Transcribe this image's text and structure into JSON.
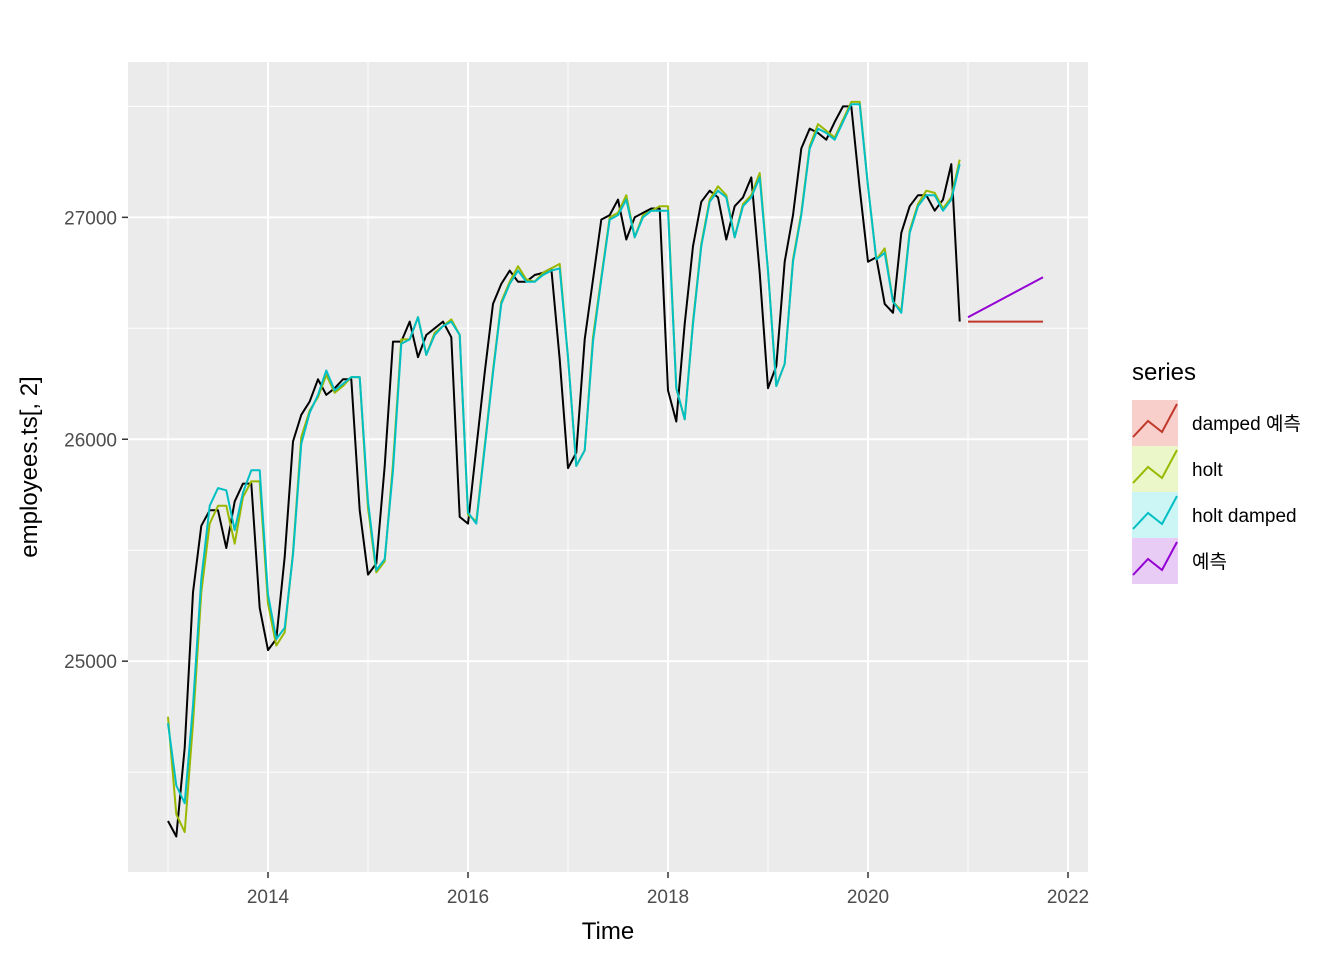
{
  "chart_data": {
    "type": "line",
    "xlabel": "Time",
    "ylabel": "employees.ts[, 2]",
    "xlim": [
      2012.6,
      2022.2
    ],
    "ylim": [
      24050,
      27700
    ],
    "x_ticks": [
      2014,
      2016,
      2018,
      2020,
      2022
    ],
    "x_tick_labels": [
      "2014",
      "2016",
      "2018",
      "2020",
      "2022"
    ],
    "y_ticks": [
      25000,
      26000,
      27000
    ],
    "y_tick_labels": [
      "25000",
      "26000",
      "27000"
    ],
    "x_minor_ticks": [
      2013,
      2015,
      2017,
      2019,
      2021
    ],
    "y_minor_ticks": [
      24500,
      25500,
      26500,
      27500
    ],
    "grid": true,
    "legend": {
      "title": "series",
      "position": "right",
      "entries": [
        {
          "label": "damped 예측",
          "color": "#C0392B"
        },
        {
          "label": "holt",
          "color": "#99B800"
        },
        {
          "label": "holt damped",
          "color": "#00BFC4"
        },
        {
          "label": "예측",
          "color": "#9400D3"
        }
      ]
    },
    "observed": {
      "color": "#000000",
      "x_start": 2013.0,
      "x_step": 0.0833333,
      "values": [
        24280,
        24210,
        24610,
        25310,
        25610,
        25680,
        25680,
        25510,
        25720,
        25800,
        25800,
        25240,
        25050,
        25100,
        25470,
        25990,
        26110,
        26170,
        26270,
        26200,
        26230,
        26270,
        26270,
        25680,
        25390,
        25440,
        25880,
        26440,
        26440,
        26530,
        26370,
        26470,
        26500,
        26530,
        26460,
        25650,
        25620,
        25960,
        26300,
        26610,
        26700,
        26760,
        26710,
        26710,
        26740,
        26750,
        26770,
        26360,
        25870,
        25940,
        26450,
        26720,
        26990,
        27010,
        27080,
        26900,
        27000,
        27020,
        27040,
        27040,
        26220,
        26080,
        26520,
        26870,
        27070,
        27120,
        27090,
        26900,
        27050,
        27090,
        27180,
        26750,
        26230,
        26330,
        26800,
        27010,
        27310,
        27400,
        27380,
        27350,
        27430,
        27500,
        27500,
        27130,
        26800,
        26820,
        26610,
        26570,
        26930,
        27050,
        27100,
        27100,
        27030,
        27080,
        27240,
        26530
      ]
    },
    "fitted_holt": {
      "color": "#99B800",
      "x_start": 2013.0,
      "x_step": 0.0833333,
      "values": [
        24750,
        24310,
        24230,
        24720,
        25310,
        25620,
        25700,
        25700,
        25530,
        25740,
        25810,
        25810,
        25260,
        25070,
        25130,
        25490,
        26010,
        26130,
        26190,
        26290,
        26210,
        26240,
        26280,
        26280,
        25690,
        25400,
        25450,
        25890,
        26450,
        26450,
        26550,
        26380,
        26480,
        26510,
        26540,
        26470,
        25660,
        25630,
        25970,
        26310,
        26620,
        26710,
        26780,
        26720,
        26710,
        26750,
        26770,
        26790,
        26370,
        25880,
        25950,
        26460,
        26730,
        27000,
        27020,
        27100,
        26910,
        27010,
        27030,
        27050,
        27050,
        26230,
        26090,
        26530,
        26880,
        27080,
        27140,
        27100,
        26910,
        27060,
        27100,
        27200,
        26760,
        26240,
        26340,
        26810,
        27020,
        27320,
        27420,
        27390,
        27360,
        27440,
        27520,
        27520,
        27140,
        26810,
        26860,
        26620,
        26580,
        26940,
        27060,
        27120,
        27110,
        27040,
        27090,
        27260
      ]
    },
    "fitted_holt_damped": {
      "color": "#00BFC4",
      "x_start": 2013.0,
      "x_step": 0.0833333,
      "values": [
        24720,
        24440,
        24360,
        24800,
        25370,
        25700,
        25780,
        25770,
        25590,
        25760,
        25860,
        25860,
        25300,
        25100,
        25150,
        25480,
        25980,
        26120,
        26200,
        26310,
        26220,
        26250,
        26280,
        26280,
        25720,
        25410,
        25460,
        25860,
        26430,
        26450,
        26550,
        26380,
        26470,
        26510,
        26530,
        26470,
        25670,
        25620,
        25960,
        26300,
        26610,
        26700,
        26760,
        26710,
        26710,
        26740,
        26760,
        26770,
        26370,
        25880,
        25950,
        26440,
        26720,
        26990,
        27010,
        27080,
        26910,
        27000,
        27030,
        27030,
        27030,
        26230,
        26090,
        26520,
        26870,
        27070,
        27120,
        27090,
        26910,
        27050,
        27090,
        27180,
        26760,
        26240,
        26340,
        26800,
        27010,
        27310,
        27400,
        27380,
        27350,
        27430,
        27510,
        27510,
        27140,
        26810,
        26840,
        26620,
        26570,
        26930,
        27050,
        27100,
        27100,
        27030,
        27080,
        27240
      ]
    },
    "forecast_damped": {
      "label": "damped 예측",
      "color": "#C0392B",
      "x": [
        2021.0,
        2021.75
      ],
      "values": [
        26530,
        26530
      ]
    },
    "forecast": {
      "label": "예측",
      "color": "#9400D3",
      "x": [
        2021.0,
        2021.75
      ],
      "values": [
        26550,
        26730
      ]
    }
  }
}
